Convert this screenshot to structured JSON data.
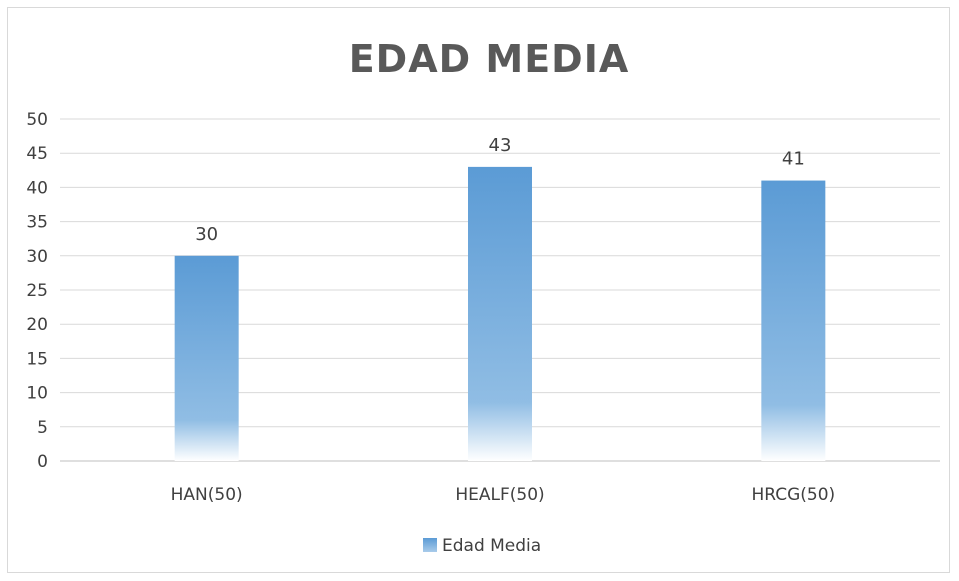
{
  "chart_data": {
    "type": "bar",
    "title": "EDAD  MEDIA",
    "categories": [
      "HAN(50)",
      "HEALF(50)",
      "HRCG(50)"
    ],
    "series": [
      {
        "name": "Edad  Media",
        "values": [
          30,
          43,
          41
        ],
        "data_labels": [
          "30",
          "43",
          "41"
        ]
      }
    ],
    "ylim": [
      0,
      50
    ],
    "y_ticks": [
      0,
      5,
      10,
      15,
      20,
      25,
      30,
      35,
      40,
      45,
      50
    ],
    "y_tick_labels": [
      "0",
      "5",
      "10",
      "15",
      "20",
      "25",
      "30",
      "35",
      "40",
      "45",
      "50"
    ],
    "grid": true,
    "legend_position": "bottom",
    "colors": {
      "bar_top": "#5b9bd5",
      "bar_bottom": "#ffffff",
      "grid": "#d9d9d9",
      "axis": "#bfbfbf"
    }
  }
}
